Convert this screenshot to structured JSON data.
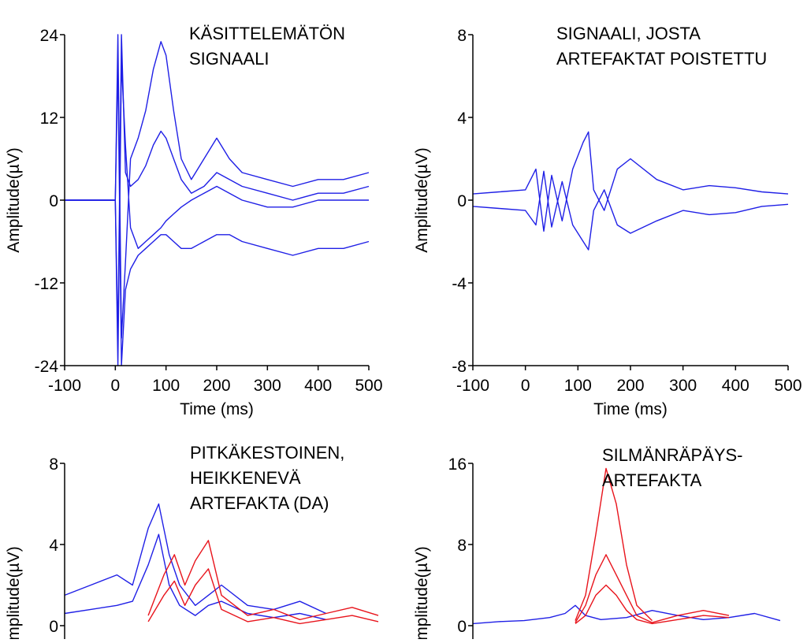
{
  "colors": {
    "main": "#1f1fe6",
    "artifact": "#e8141c",
    "axis": "#000000"
  },
  "chart_data": [
    {
      "type": "line",
      "annotation": [
        "KÄSITTELEMÄTÖN",
        "SIGNAALI"
      ],
      "xlabel": "Time (ms)",
      "ylabel": "Amplitude(µV)",
      "xlim": [
        -100,
        500
      ],
      "ylim": [
        -24,
        24
      ],
      "xticks": [
        "-100",
        "0",
        "100",
        "200",
        "300",
        "400",
        "500"
      ],
      "yticks": [
        "-24",
        "-12",
        "0",
        "12",
        "24"
      ],
      "series": [
        {
          "color": "#1f1fe6",
          "x": [
            -100,
            0,
            5,
            12,
            20,
            30,
            45,
            60,
            75,
            90,
            100,
            115,
            130,
            150,
            175,
            200,
            225,
            250,
            300,
            350,
            400,
            450,
            500
          ],
          "y": [
            0,
            0,
            24,
            -20,
            -9,
            6,
            9,
            13,
            19,
            23,
            21,
            13,
            6,
            3,
            6,
            9,
            6,
            4,
            3,
            2,
            3,
            3,
            4
          ]
        },
        {
          "color": "#1f1fe6",
          "x": [
            -100,
            0,
            5,
            12,
            20,
            30,
            45,
            60,
            75,
            90,
            100,
            115,
            130,
            150,
            175,
            200,
            225,
            250,
            300,
            350,
            400,
            450,
            500
          ],
          "y": [
            0,
            0,
            -24,
            20,
            8,
            -4,
            -7,
            -6,
            -5,
            -4,
            -3,
            -2,
            -1,
            0,
            1,
            2,
            1,
            0,
            -1,
            -1,
            0,
            0,
            0
          ]
        },
        {
          "color": "#1f1fe6",
          "x": [
            -100,
            0,
            5,
            12,
            20,
            30,
            45,
            60,
            75,
            90,
            100,
            115,
            130,
            150,
            175,
            200,
            225,
            250,
            300,
            350,
            400,
            450,
            500
          ],
          "y": [
            0,
            0,
            20,
            -24,
            -13,
            -10,
            -8,
            -7,
            -6,
            -5,
            -5,
            -6,
            -7,
            -7,
            -6,
            -5,
            -5,
            -6,
            -7,
            -8,
            -7,
            -7,
            -6
          ]
        },
        {
          "color": "#1f1fe6",
          "x": [
            -100,
            0,
            5,
            12,
            20,
            30,
            45,
            60,
            75,
            90,
            100,
            115,
            130,
            150,
            175,
            200,
            225,
            250,
            300,
            350,
            400,
            450,
            500
          ],
          "y": [
            0,
            0,
            -20,
            24,
            4,
            2,
            3,
            5,
            8,
            10,
            9,
            6,
            3,
            1,
            2,
            4,
            3,
            2,
            1,
            0,
            1,
            1,
            2
          ]
        }
      ]
    },
    {
      "type": "line",
      "annotation": [
        "SIGNAALI, JOSTA",
        "ARTEFAKTAT POISTETTU"
      ],
      "xlabel": "Time (ms)",
      "ylabel": "Amplitude(µV)",
      "xlim": [
        -100,
        500
      ],
      "ylim": [
        -8,
        8
      ],
      "xticks": [
        "-100",
        "0",
        "100",
        "200",
        "300",
        "400",
        "500"
      ],
      "yticks": [
        "-8",
        "-4",
        "0",
        "4",
        "8"
      ],
      "series": [
        {
          "color": "#1f1fe6",
          "x": [
            -100,
            -50,
            0,
            20,
            35,
            50,
            70,
            90,
            110,
            120,
            130,
            150,
            175,
            200,
            250,
            300,
            350,
            400,
            450,
            500
          ],
          "y": [
            0.3,
            0.4,
            0.5,
            1.5,
            -1.5,
            1.2,
            -1.0,
            1.5,
            2.8,
            3.3,
            0.5,
            -0.5,
            1.5,
            2.0,
            1.0,
            0.5,
            0.7,
            0.6,
            0.4,
            0.3
          ]
        },
        {
          "color": "#1f1fe6",
          "x": [
            -100,
            -50,
            0,
            20,
            35,
            50,
            70,
            90,
            110,
            120,
            130,
            150,
            175,
            200,
            250,
            300,
            350,
            400,
            450,
            500
          ],
          "y": [
            -0.3,
            -0.4,
            -0.5,
            -1.2,
            1.4,
            -1.3,
            0.9,
            -1.2,
            -2.0,
            -2.4,
            -0.5,
            0.5,
            -1.2,
            -1.6,
            -1.0,
            -0.5,
            -0.7,
            -0.6,
            -0.3,
            -0.2
          ]
        }
      ]
    },
    {
      "type": "line",
      "annotation": [
        "PITKÄKESTOINEN,",
        "HEIKKENEVÄ",
        "ARTEFAKTA (DA)"
      ],
      "xlabel": "",
      "ylabel": "Amplitude(µV)",
      "xlim": [
        -100,
        500
      ],
      "ylim": [
        -8,
        8
      ],
      "xticks": [],
      "yticks": [
        "0",
        "4",
        "8"
      ],
      "series": [
        {
          "color": "#1f1fe6",
          "x": [
            -100,
            -50,
            0,
            30,
            60,
            80,
            100,
            120,
            150,
            175,
            200,
            250,
            300,
            350,
            400
          ],
          "y": [
            1.5,
            2.0,
            2.5,
            2.0,
            4.8,
            6.0,
            3.5,
            2.0,
            1.0,
            1.5,
            2.0,
            1.0,
            0.8,
            1.2,
            0.6
          ]
        },
        {
          "color": "#1f1fe6",
          "x": [
            -100,
            -50,
            0,
            30,
            60,
            80,
            100,
            120,
            150,
            175,
            200,
            250,
            300,
            350,
            400
          ],
          "y": [
            0.6,
            0.8,
            1.0,
            1.2,
            3.0,
            4.5,
            2.0,
            1.0,
            0.5,
            1.0,
            1.2,
            0.6,
            0.4,
            0.6,
            0.3
          ]
        },
        {
          "color": "#e8141c",
          "x": [
            60,
            90,
            110,
            130,
            150,
            175,
            200,
            250,
            300,
            350,
            400,
            450,
            500
          ],
          "y": [
            0.5,
            2.5,
            3.5,
            2.0,
            3.2,
            4.2,
            1.5,
            0.5,
            0.8,
            0.3,
            0.6,
            0.9,
            0.5
          ]
        },
        {
          "color": "#e8141c",
          "x": [
            60,
            90,
            110,
            130,
            150,
            175,
            200,
            250,
            300,
            350,
            400,
            450,
            500
          ],
          "y": [
            0.2,
            1.5,
            2.2,
            1.0,
            2.0,
            2.8,
            0.8,
            0.2,
            0.4,
            0.1,
            0.3,
            0.5,
            0.2
          ]
        }
      ]
    },
    {
      "type": "line",
      "annotation": [
        "SILMÄNRÄPÄYS-",
        "ARTEFAKTA"
      ],
      "xlabel": "",
      "ylabel": "Amplitude(µV)",
      "xlim": [
        -100,
        500
      ],
      "ylim": [
        -16,
        16
      ],
      "xticks": [],
      "yticks": [
        "0",
        "8",
        "16"
      ],
      "series": [
        {
          "color": "#1f1fe6",
          "x": [
            -100,
            -50,
            0,
            50,
            80,
            100,
            120,
            150,
            200,
            250,
            300,
            350,
            400,
            450,
            500
          ],
          "y": [
            0.2,
            0.4,
            0.5,
            0.8,
            1.2,
            2.0,
            1.0,
            0.6,
            0.8,
            1.5,
            1.0,
            0.6,
            0.8,
            1.2,
            0.5
          ]
        },
        {
          "color": "#e8141c",
          "x": [
            100,
            120,
            140,
            160,
            180,
            200,
            220,
            250
          ],
          "y": [
            0.5,
            3.0,
            9.0,
            15.5,
            12.0,
            6.0,
            2.0,
            0.5
          ]
        },
        {
          "color": "#e8141c",
          "x": [
            100,
            120,
            140,
            160,
            180,
            200,
            220,
            250,
            300,
            350,
            400
          ],
          "y": [
            0.3,
            2.0,
            5.0,
            7.0,
            5.0,
            3.0,
            1.0,
            0.3,
            1.0,
            1.5,
            1.0
          ]
        },
        {
          "color": "#e8141c",
          "x": [
            100,
            120,
            140,
            160,
            180,
            200,
            220,
            250,
            300,
            350,
            400
          ],
          "y": [
            0.2,
            1.0,
            3.0,
            4.0,
            3.0,
            1.5,
            0.6,
            0.2,
            0.6,
            1.0,
            0.8
          ]
        }
      ]
    }
  ]
}
